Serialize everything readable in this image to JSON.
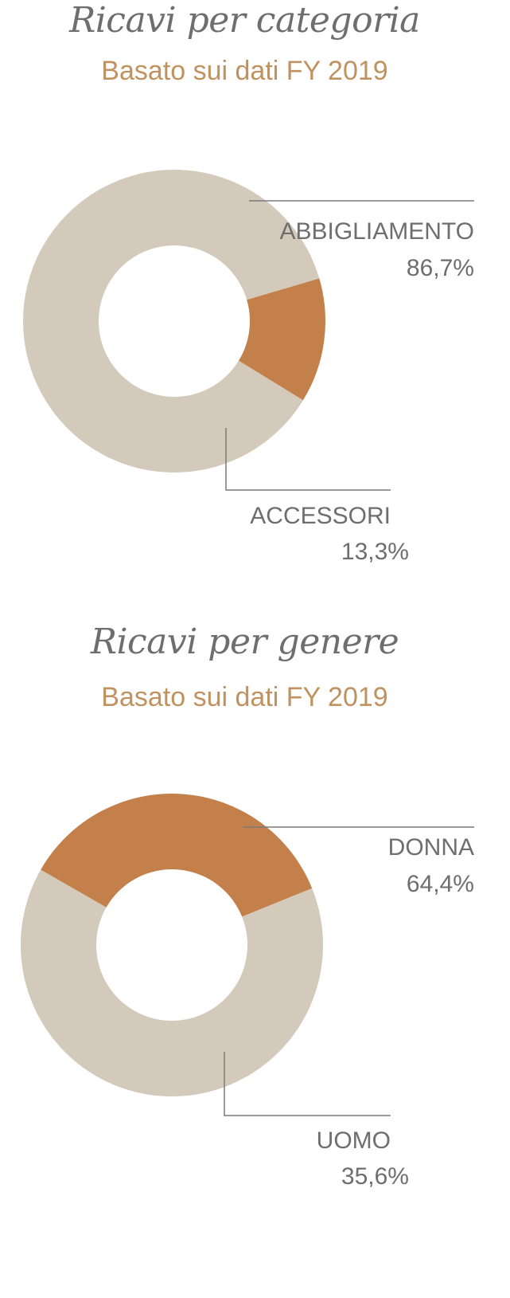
{
  "colors": {
    "primary_slice": "#d3cabc",
    "secondary_slice": "#c4804a",
    "leader_line": "#7a7a7a"
  },
  "chart_data": [
    {
      "type": "pie",
      "title": "Ricavi per categoria",
      "subtitle": "Basato sui dati FY 2019",
      "donut": true,
      "categories": [
        "ABBIGLIAMENTO",
        "ACCESSORI"
      ],
      "values": [
        86.7,
        13.3
      ],
      "value_labels": [
        "86,7%",
        "13,3%"
      ],
      "colors": [
        "#d3cabc",
        "#c4804a"
      ]
    },
    {
      "type": "pie",
      "title": "Ricavi per genere",
      "subtitle": "Basato sui dati FY 2019",
      "donut": true,
      "categories": [
        "DONNA",
        "UOMO"
      ],
      "values": [
        64.4,
        35.6
      ],
      "value_labels": [
        "64,4%",
        "35,6%"
      ],
      "colors": [
        "#d3cabc",
        "#c4804a"
      ]
    }
  ]
}
